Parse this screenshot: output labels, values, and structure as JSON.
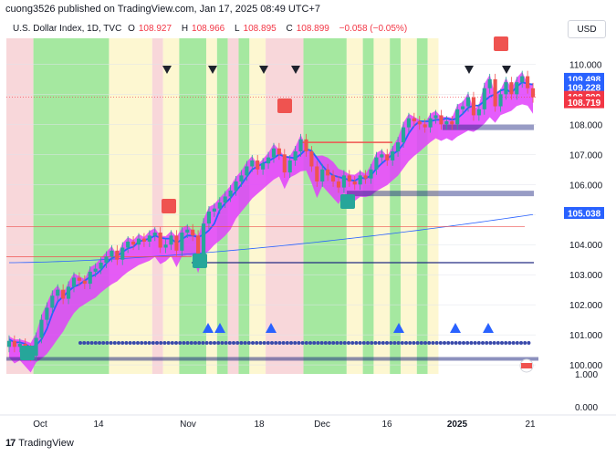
{
  "header": {
    "publisher": "cuong3526 published on TradingView.com, Jan 17, 2025 08:49 UTC+7",
    "symbol": "U.S. Dollar Index, 1D, TVC",
    "open_label": "O",
    "open": "108.927",
    "high_label": "H",
    "high": "108.966",
    "low_label": "L",
    "low": "108.895",
    "close_label": "C",
    "close": "108.899",
    "change": "−0.058 (−0.05%)"
  },
  "currency": "USD",
  "footer": {
    "brand": "TradingView",
    "logo_icon": "tradingview-logo-icon"
  },
  "colors": {
    "up": "#26a69a",
    "down": "#ef5350",
    "cloud": "#e040fb",
    "ma_fast": "#2962ff",
    "bg_green": "#a5e8a0",
    "bg_red": "#f8d7da",
    "bg_yellow": "#fdf7d1"
  },
  "chart_data": {
    "type": "candlestick",
    "x_ticks": [
      "Oct",
      "14",
      "Nov",
      "18",
      "Dec",
      "16",
      "2025",
      "21"
    ],
    "y_ticks": [
      "110.000",
      "109.000",
      "108.000",
      "107.000",
      "106.000",
      "105.000",
      "104.000",
      "103.000",
      "102.000",
      "101.000",
      "100.000"
    ],
    "y_log_ticks": [
      "1.000",
      "0.000"
    ],
    "ylim": [
      99.7,
      110.8
    ],
    "price_labels": [
      {
        "value": 109.498,
        "text": "109.498",
        "color": "#2962ff"
      },
      {
        "value": 109.228,
        "text": "109.228",
        "color": "#2962ff"
      },
      {
        "value": 108.899,
        "text": "108.899",
        "color": "#f23645"
      },
      {
        "value": 108.719,
        "text": "108.719",
        "color": "#f23645"
      },
      {
        "value": 105.038,
        "text": "105.038",
        "color": "#2962ff"
      }
    ],
    "closes": [
      100.8,
      100.6,
      100.7,
      100.5,
      100.3,
      100.9,
      101.5,
      101.9,
      102.3,
      102.5,
      102.2,
      102.6,
      102.9,
      102.8,
      102.7,
      103.1,
      103.2,
      103.4,
      103.6,
      103.8,
      103.5,
      103.9,
      104.1,
      104.0,
      104.2,
      104.1,
      104.3,
      104.4,
      103.9,
      104.0,
      104.3,
      103.8,
      104.4,
      104.5,
      104.3,
      103.6,
      104.7,
      105.1,
      105.2,
      105.4,
      105.6,
      105.8,
      106.1,
      106.3,
      106.6,
      106.8,
      106.5,
      106.7,
      106.9,
      107.2,
      107.0,
      106.4,
      106.8,
      107.1,
      107.5,
      107.1,
      106.6,
      106.1,
      106.5,
      106.3,
      106.1,
      105.9,
      106.3,
      106.1,
      106.0,
      106.3,
      106.2,
      106.5,
      106.9,
      107.0,
      106.8,
      107.1,
      107.4,
      107.9,
      108.2,
      108.1,
      108.0,
      107.9,
      108.2,
      108.3,
      108.0,
      108.1,
      108.0,
      108.5,
      108.6,
      108.9,
      108.3,
      108.5,
      109.2,
      109.5,
      108.6,
      109.0,
      109.4,
      109.0,
      109.4,
      109.6,
      109.2,
      108.9
    ],
    "bg_bands": [
      {
        "from": 0,
        "to": 5,
        "zone": "red"
      },
      {
        "from": 5,
        "to": 19,
        "zone": "green"
      },
      {
        "from": 19,
        "to": 27,
        "zone": "yellow"
      },
      {
        "from": 27,
        "to": 29,
        "zone": "red"
      },
      {
        "from": 29,
        "to": 32,
        "zone": "yellow"
      },
      {
        "from": 32,
        "to": 37,
        "zone": "green"
      },
      {
        "from": 37,
        "to": 39,
        "zone": "yellow"
      },
      {
        "from": 39,
        "to": 41,
        "zone": "green"
      },
      {
        "from": 41,
        "to": 43,
        "zone": "red"
      },
      {
        "from": 43,
        "to": 45,
        "zone": "green"
      },
      {
        "from": 45,
        "to": 48,
        "zone": "yellow"
      },
      {
        "from": 48,
        "to": 55,
        "zone": "red"
      },
      {
        "from": 55,
        "to": 63,
        "zone": "green"
      },
      {
        "from": 63,
        "to": 66,
        "zone": "yellow"
      },
      {
        "from": 66,
        "to": 68,
        "zone": "green"
      },
      {
        "from": 68,
        "to": 71,
        "zone": "yellow"
      },
      {
        "from": 71,
        "to": 73,
        "zone": "green"
      },
      {
        "from": 73,
        "to": 76,
        "zone": "yellow"
      },
      {
        "from": 76,
        "to": 78,
        "zone": "green"
      },
      {
        "from": 78,
        "to": 80,
        "zone": "yellow"
      }
    ]
  }
}
